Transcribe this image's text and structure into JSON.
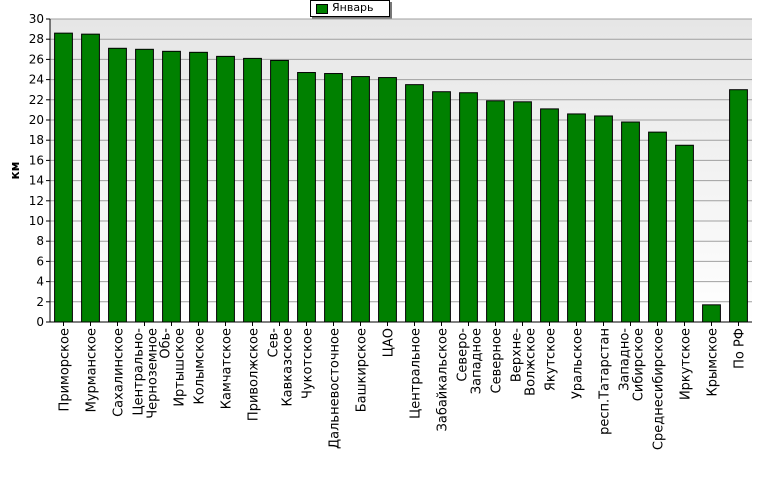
{
  "chart_data": {
    "type": "bar",
    "ylabel": "км",
    "ylim": [
      0,
      30
    ],
    "ytick_step": 2,
    "grid": true,
    "legend_position": "top-center",
    "series": [
      {
        "name": "Январь",
        "color": "#008000",
        "values": [
          28.6,
          28.5,
          27.1,
          27.0,
          26.8,
          26.7,
          26.3,
          26.1,
          25.9,
          24.7,
          24.6,
          24.3,
          24.2,
          23.5,
          22.8,
          22.7,
          21.9,
          21.8,
          21.1,
          20.6,
          20.4,
          19.8,
          18.8,
          17.5,
          1.7,
          23.0
        ]
      }
    ],
    "categories": [
      "Приморское",
      "Мурманское",
      "Сахалинское",
      "Центрально-Черноземное",
      "Обь-Иртышское",
      "Колымское",
      "Камчатское",
      "Приволжское",
      "Сев-Кавказское",
      "Чукотское",
      "Дальневосточное",
      "Башкирское",
      "ЦАО",
      "Центральное",
      "Забайкальское",
      "Северо-Западное",
      "Северное",
      "Верхне-Волжское",
      "Якутское",
      "Уральское",
      "респ.Татарстан",
      "Западно-Сибирское",
      "Среднесибирское",
      "Иркутское",
      "Крымское",
      "По РФ"
    ],
    "category_label_lines": [
      [
        "Приморское"
      ],
      [
        "Мурманское"
      ],
      [
        "Сахалинское"
      ],
      [
        "Центрально-",
        "Черноземное"
      ],
      [
        "Обь-",
        "Иртышское"
      ],
      [
        "Колымское"
      ],
      [
        "Камчатское"
      ],
      [
        "Приволжское"
      ],
      [
        "Сев-",
        "Кавказское"
      ],
      [
        "Чукотское"
      ],
      [
        "Дальневосточное"
      ],
      [
        "Башкирское"
      ],
      [
        "ЦАО"
      ],
      [
        "Центральное"
      ],
      [
        "Забайкальское"
      ],
      [
        "Северо-",
        "Западное"
      ],
      [
        "Северное"
      ],
      [
        "Верхне-",
        "Волжское"
      ],
      [
        "Якутское"
      ],
      [
        "Уральское"
      ],
      [
        "респ.Татарстан"
      ],
      [
        "Западно-",
        "Сибирское"
      ],
      [
        "Среднесибирское"
      ],
      [
        "Иркутское"
      ],
      [
        "Крымское"
      ],
      [
        "По РФ"
      ]
    ]
  }
}
